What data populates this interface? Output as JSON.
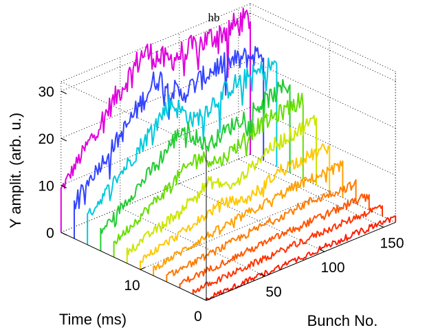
{
  "chart_data": {
    "type": "line",
    "subtype": "3d-waterfall",
    "title": "hb",
    "xlabel": "Bunch No.",
    "ylabel": "Time (ms)",
    "zlabel": "Y amplit. (arb. u.)",
    "x_ticks": [
      "50",
      "100",
      "150"
    ],
    "y_ticks": [
      "0",
      "10"
    ],
    "z_ticks": [
      "0",
      "10",
      "20",
      "30"
    ],
    "xlim": [
      0,
      160
    ],
    "ylim": [
      0,
      22
    ],
    "zlim": [
      0,
      32
    ],
    "grid": true,
    "bunch_count": 160,
    "colormap": "hsv",
    "series": [
      {
        "time": 0,
        "color": "#ff1a00",
        "envelope": [
          [
            0,
            0.3
          ],
          [
            50,
            0.6
          ],
          [
            100,
            1.0
          ],
          [
            160,
            1.2
          ]
        ]
      },
      {
        "time": 2,
        "color": "#ff3300",
        "envelope": [
          [
            0,
            0.6
          ],
          [
            50,
            1.2
          ],
          [
            100,
            1.8
          ],
          [
            160,
            2.2
          ]
        ]
      },
      {
        "time": 4,
        "color": "#ff5500",
        "envelope": [
          [
            0,
            1.0
          ],
          [
            50,
            1.8
          ],
          [
            100,
            2.6
          ],
          [
            160,
            3.2
          ]
        ]
      },
      {
        "time": 6,
        "color": "#ff7a00",
        "envelope": [
          [
            0,
            1.2
          ],
          [
            40,
            2.2
          ],
          [
            80,
            3.5
          ],
          [
            120,
            4.5
          ],
          [
            160,
            4.2
          ]
        ]
      },
      {
        "time": 8,
        "color": "#ffa000",
        "envelope": [
          [
            0,
            1.5
          ],
          [
            40,
            3.5
          ],
          [
            80,
            5.0
          ],
          [
            120,
            6.5
          ],
          [
            160,
            7.0
          ]
        ]
      },
      {
        "time": 10,
        "color": "#ffc800",
        "envelope": [
          [
            0,
            2.0
          ],
          [
            40,
            4.5
          ],
          [
            70,
            7.0
          ],
          [
            90,
            5.5
          ],
          [
            120,
            9.0
          ],
          [
            160,
            9.5
          ]
        ]
      },
      {
        "time": 12,
        "color": "#cce600",
        "envelope": [
          [
            0,
            2.5
          ],
          [
            40,
            6.0
          ],
          [
            70,
            10.0
          ],
          [
            90,
            7.0
          ],
          [
            120,
            12.0
          ],
          [
            160,
            14.0
          ]
        ]
      },
      {
        "time": 14,
        "color": "#66dd00",
        "envelope": [
          [
            0,
            3.0
          ],
          [
            40,
            9.0
          ],
          [
            70,
            14.0
          ],
          [
            90,
            11.0
          ],
          [
            120,
            15.0
          ],
          [
            160,
            17.0
          ]
        ]
      },
      {
        "time": 16,
        "color": "#22cc33",
        "envelope": [
          [
            0,
            4.0
          ],
          [
            40,
            12.0
          ],
          [
            70,
            19.0
          ],
          [
            90,
            13.0
          ],
          [
            120,
            16.0
          ],
          [
            160,
            19.0
          ]
        ]
      },
      {
        "time": 18,
        "color": "#00c8dd",
        "envelope": [
          [
            0,
            6.0
          ],
          [
            40,
            15.0
          ],
          [
            70,
            23.0
          ],
          [
            90,
            17.0
          ],
          [
            120,
            21.0
          ],
          [
            160,
            22.0
          ]
        ]
      },
      {
        "time": 20,
        "color": "#3344ff",
        "envelope": [
          [
            0,
            8.0
          ],
          [
            40,
            18.0
          ],
          [
            70,
            27.0
          ],
          [
            90,
            21.0
          ],
          [
            120,
            24.0
          ],
          [
            160,
            23.0
          ]
        ]
      },
      {
        "time": 22,
        "color": "#e000dd",
        "envelope": [
          [
            0,
            9.0
          ],
          [
            40,
            22.0
          ],
          [
            70,
            31.0
          ],
          [
            90,
            27.0
          ],
          [
            120,
            28.0
          ],
          [
            160,
            29.0
          ]
        ]
      }
    ]
  }
}
